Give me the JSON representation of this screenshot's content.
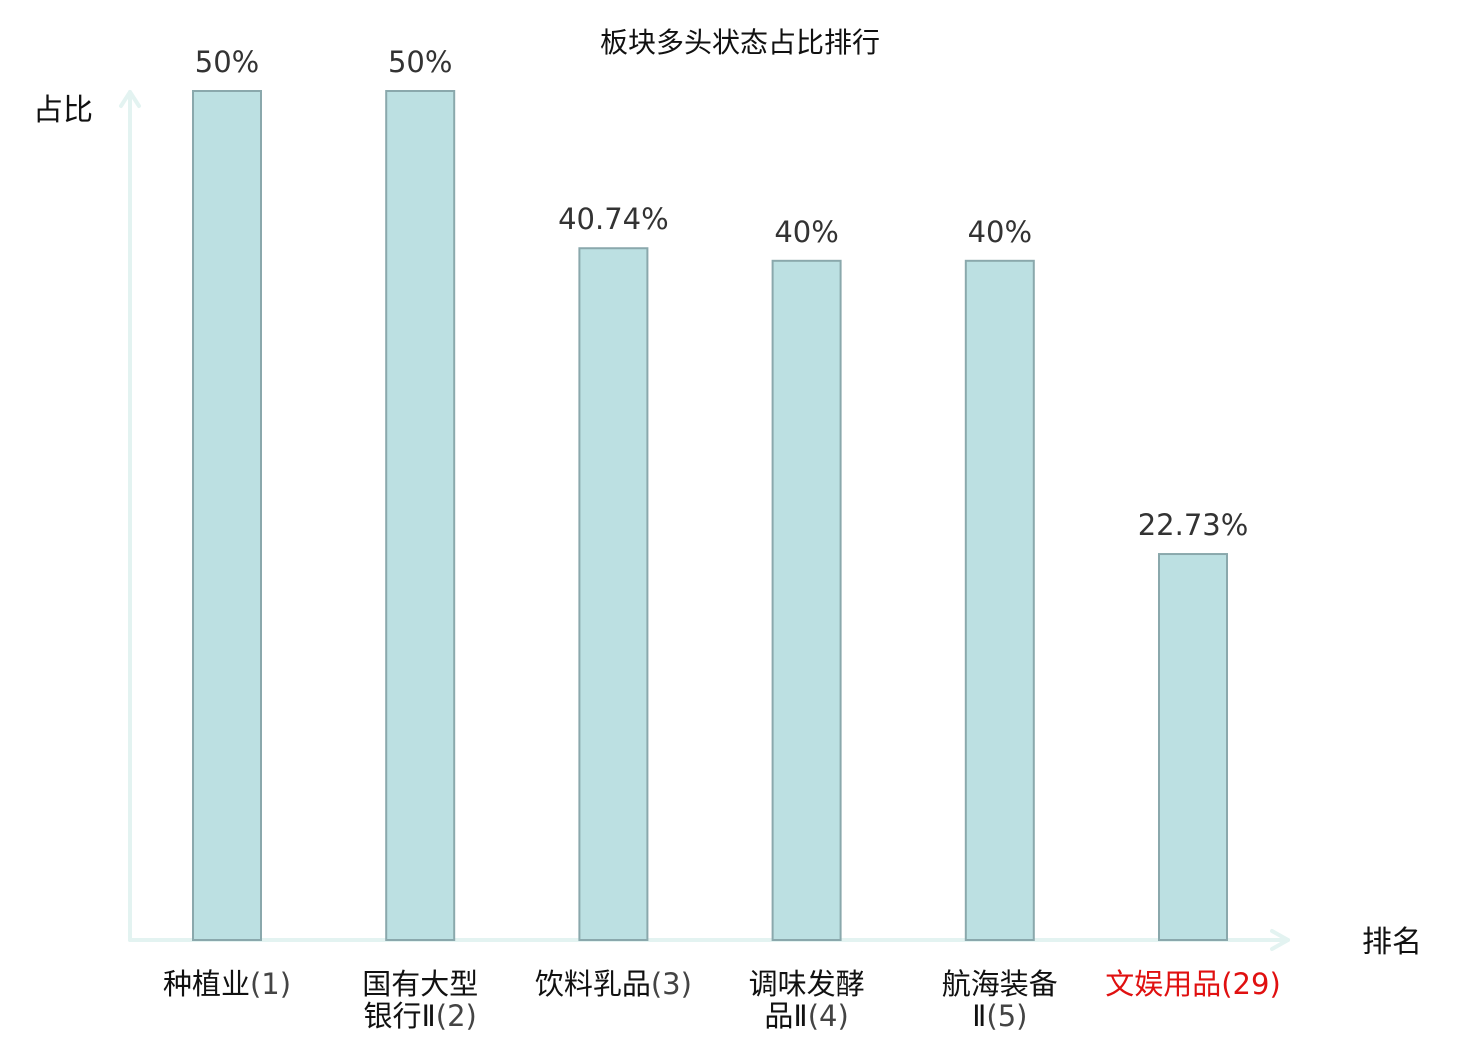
{
  "chart_data": {
    "type": "bar",
    "title": "板块多头状态占比排行",
    "xlabel": "排名",
    "ylabel": "占比",
    "ylim": [
      0,
      50
    ],
    "grid": false,
    "categories": [
      {
        "lines": [
          "种植业",
          "(1)"
        ],
        "highlight": false
      },
      {
        "lines": [
          "国有大型",
          "银行Ⅱ(2)"
        ],
        "highlight": false
      },
      {
        "lines": [
          "饮料乳品",
          "(3)"
        ],
        "highlight": false
      },
      {
        "lines": [
          "调味发酵",
          "品Ⅱ(4)"
        ],
        "highlight": false
      },
      {
        "lines": [
          "航海装备",
          "Ⅱ(5)"
        ],
        "highlight": false
      },
      {
        "lines": [
          "文娱用品",
          "(29)"
        ],
        "highlight": true
      }
    ],
    "values": [
      50,
      50,
      40.74,
      40,
      40,
      22.73
    ],
    "value_labels": [
      "50%",
      "50%",
      "40.74%",
      "40%",
      "40%",
      "22.73%"
    ],
    "colors": {
      "bar_fill": "#bce0e2",
      "bar_stroke": "#8aa8ac",
      "axis": "#e3f3f1",
      "highlight": "#e01010",
      "text": "#111111",
      "rank_text": "#444444"
    }
  }
}
